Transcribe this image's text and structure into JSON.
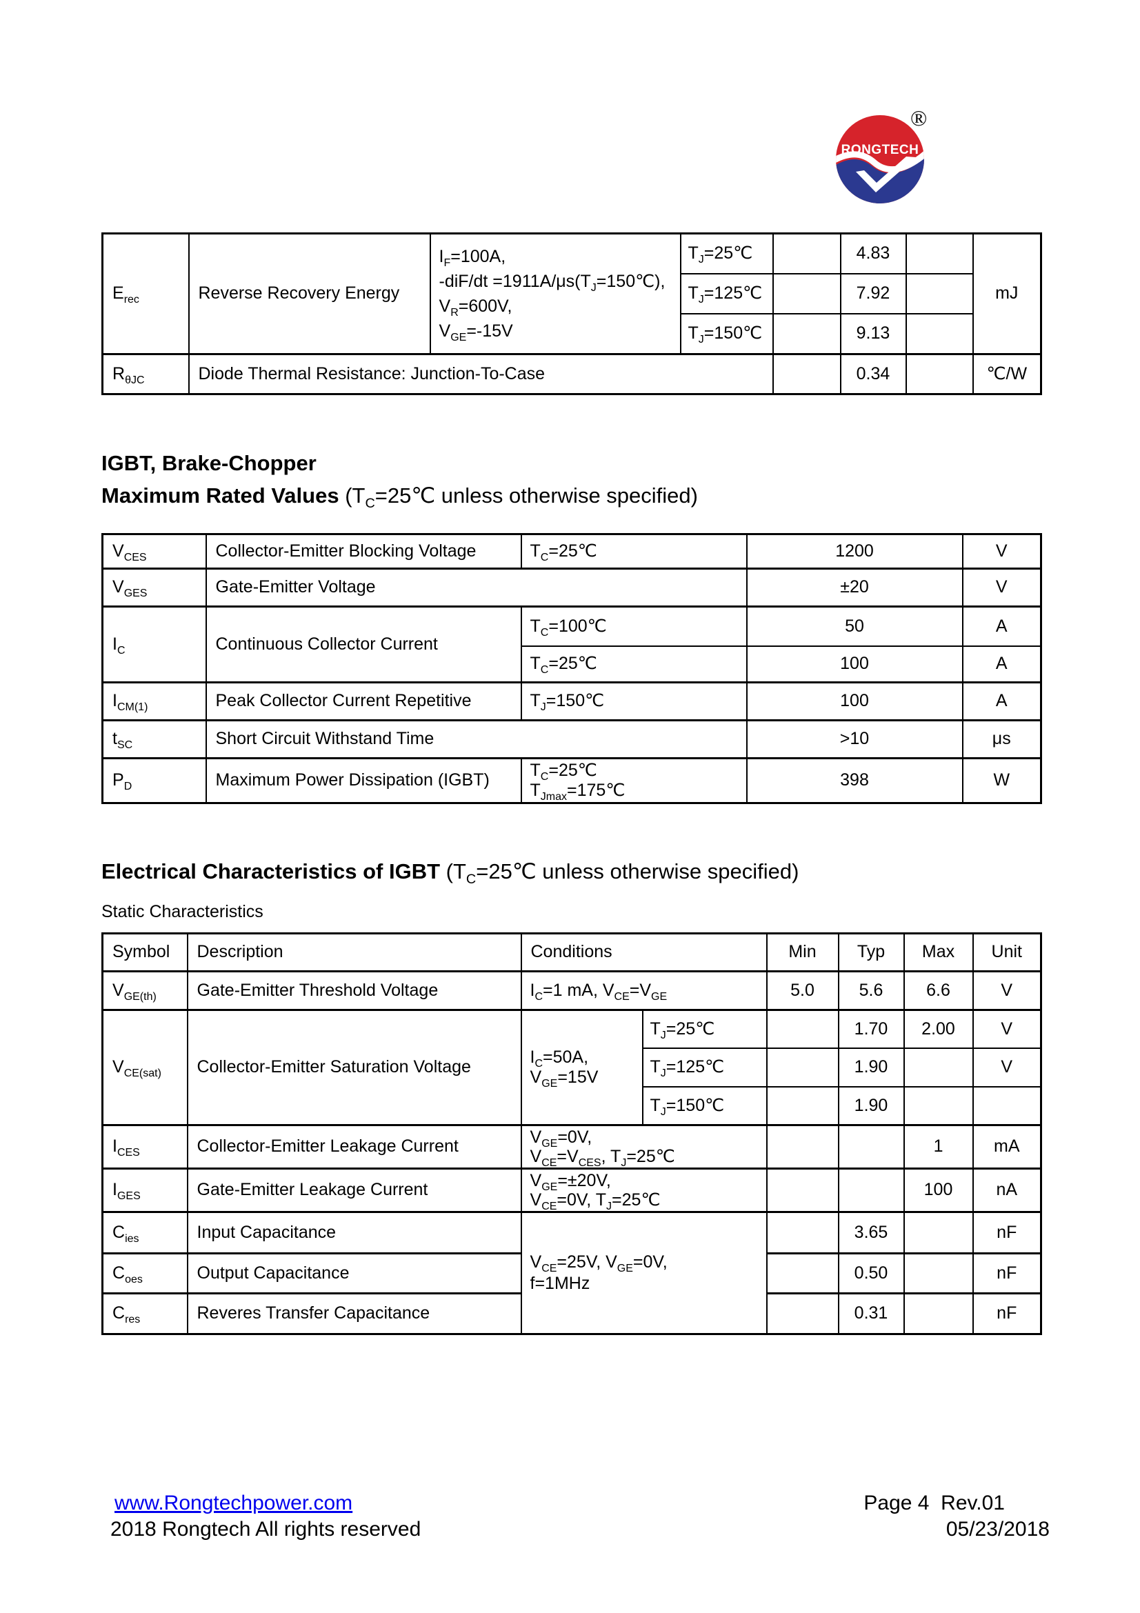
{
  "logo": {
    "brand": "RONGTECH",
    "registered_mark": "®",
    "red": "#d6232b",
    "blue": "#2b3990"
  },
  "diode_table": {
    "erec": {
      "symbol": "E~rec~",
      "description": "Reverse Recovery Energy",
      "conditions": [
        "I~F~=100A,",
        "-diF/dt =1911A/μs(T~J~=150℃),",
        "V~R~=600V,",
        "V~GE~=-15V"
      ],
      "sub_rows": [
        {
          "temp": "T~J~=25℃",
          "min": "",
          "typ": "4.83",
          "max": ""
        },
        {
          "temp": "T~J~=125℃",
          "min": "",
          "typ": "7.92",
          "max": ""
        },
        {
          "temp": "T~J~=150℃",
          "min": "",
          "typ": "9.13",
          "max": ""
        }
      ],
      "unit": "mJ"
    },
    "rthjc": {
      "symbol": "R~θJC~",
      "description": "Diode Thermal Resistance: Junction-To-Case",
      "min": "",
      "typ": "0.34",
      "max": "",
      "unit": "℃/W"
    }
  },
  "section_max_rated": {
    "heading_line1": "IGBT, Brake-Chopper",
    "heading_line2_bold": "Maximum Rated Values",
    "heading_line2_normal": " (T~C~=25℃ unless otherwise specified)"
  },
  "max_rated_table": {
    "vces": {
      "symbol": "V~CES~",
      "description": "Collector-Emitter Blocking Voltage",
      "condition": "T~C~=25℃",
      "value": "1200",
      "unit": "V"
    },
    "vges": {
      "symbol": "V~GES~",
      "description": "Gate-Emitter Voltage",
      "value": "±20",
      "unit": "V"
    },
    "ic": {
      "symbol": "I~C~",
      "description": "Continuous Collector Current",
      "sub_rows": [
        {
          "condition": "T~C~=100℃",
          "value": "50",
          "unit": "A"
        },
        {
          "condition": "T~C~=25℃",
          "value": "100",
          "unit": "A"
        }
      ]
    },
    "icm1": {
      "symbol": "I~CM(1)~",
      "description": "Peak Collector Current Repetitive",
      "condition": "T~J~=150℃",
      "value": "100",
      "unit": "A"
    },
    "tsc": {
      "symbol": "t~SC~",
      "description": "Short Circuit Withstand Time",
      "value": ">10",
      "unit": "μs"
    },
    "pd": {
      "symbol": "P~D~",
      "description": "Maximum Power Dissipation (IGBT)",
      "condition_lines": [
        "T~C~=25℃",
        "T~Jmax~=175℃"
      ],
      "value": "398",
      "unit": "W"
    }
  },
  "section_electrical": {
    "heading_bold": "Electrical Characteristics of IGBT",
    "heading_normal": " (T~C~=25℃ unless otherwise specified)",
    "subheading": "Static Characteristics"
  },
  "static_table": {
    "headers": {
      "symbol": "Symbol",
      "description": "Description",
      "conditions": "Conditions",
      "min": "Min",
      "typ": "Typ",
      "max": "Max",
      "unit": "Unit"
    },
    "vgeth": {
      "symbol": "V~GE(th)~",
      "description": "Gate-Emitter Threshold Voltage",
      "condition": "I~C~=1 mA, V~CE~=V~GE~",
      "min": "5.0",
      "typ": "5.6",
      "max": "6.6",
      "unit": "V"
    },
    "vcesat": {
      "symbol": "V~CE(sat)~",
      "description": "Collector-Emitter Saturation Voltage",
      "condition_lines": [
        "I~C~=50A,",
        "V~GE~=15V"
      ],
      "sub_rows": [
        {
          "temp": "T~J~=25℃",
          "min": "",
          "typ": "1.70",
          "max": "2.00",
          "unit": "V"
        },
        {
          "temp": "T~J~=125℃",
          "min": "",
          "typ": "1.90",
          "max": "",
          "unit": "V"
        },
        {
          "temp": "T~J~=150℃",
          "min": "",
          "typ": "1.90",
          "max": "",
          "unit": ""
        }
      ]
    },
    "ices": {
      "symbol": "I~CES~",
      "description": "Collector-Emitter Leakage Current",
      "condition_lines": [
        "V~GE~=0V,",
        "V~CE~=V~CES~,  T~J~=25℃"
      ],
      "min": "",
      "typ": "",
      "max": "1",
      "unit": "mA"
    },
    "iges": {
      "symbol": "I~GES~",
      "description": "Gate-Emitter Leakage Current",
      "condition_lines": [
        "V~GE~=±20V,",
        "V~CE~=0V,  T~J~=25℃"
      ],
      "min": "",
      "typ": "",
      "max": "100",
      "unit": "nA"
    },
    "cap_condition_lines": [
      "V~CE~=25V, V~GE~=0V,",
      "f=1MHz"
    ],
    "cies": {
      "symbol": "C~ies~",
      "description": "Input Capacitance",
      "min": "",
      "typ": "3.65",
      "max": "",
      "unit": "nF"
    },
    "coes": {
      "symbol": "C~oes~",
      "description": "Output Capacitance",
      "min": "",
      "typ": "0.50",
      "max": "",
      "unit": "nF"
    },
    "cres": {
      "symbol": "C~res~",
      "description": "Reveres Transfer Capacitance",
      "min": "",
      "typ": "0.31",
      "max": "",
      "unit": "nF"
    }
  },
  "footer": {
    "website": "www.Rongtechpower.com",
    "copyright": "2018 Rongtech All rights reserved",
    "page_rev": "Page 4  Rev.01",
    "date": "05/23/2018",
    "link_color": "#0000ee"
  }
}
